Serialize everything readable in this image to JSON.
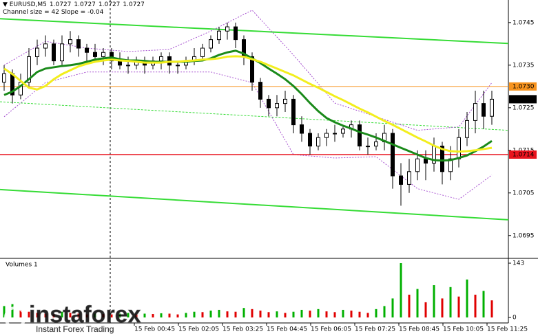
{
  "header": {
    "symbol": "EURUSD,M5",
    "ohlc": [
      1.0727,
      1.0727,
      1.0727,
      1.0727
    ],
    "channel_note": "Channel size = 42 Slope = -0.04"
  },
  "chart_data": {
    "type": "candlestick",
    "open": [
      1.0731,
      1.0733,
      1.0728,
      1.0731,
      1.0737,
      1.0739,
      1.074,
      1.0736,
      1.074,
      1.0741,
      1.0739,
      1.0738,
      1.0737,
      1.0738,
      1.0736,
      1.0735,
      1.0735,
      1.0736,
      1.0735,
      1.0736,
      1.0737,
      1.0735,
      1.0735,
      1.0736,
      1.0737,
      1.0739,
      1.0741,
      1.0743,
      1.0744,
      1.0741,
      1.0737,
      1.0731,
      1.0727,
      1.0725,
      1.0726,
      1.0727,
      1.0721,
      1.0719,
      1.0716,
      1.0718,
      1.0719,
      1.0719,
      1.072,
      1.0721,
      1.0716,
      1.0716,
      1.0717,
      1.0719,
      1.0709,
      1.0707,
      1.071,
      1.0713,
      1.0712,
      1.0716,
      1.071,
      1.0713,
      1.0718,
      1.0722,
      1.0726,
      1.0723
    ],
    "high": [
      1.0735,
      1.0734,
      1.0733,
      1.0739,
      1.0741,
      1.0742,
      1.0741,
      1.0742,
      1.0743,
      1.0742,
      1.074,
      1.074,
      1.0739,
      1.0739,
      1.0738,
      1.0737,
      1.0737,
      1.0737,
      1.0737,
      1.0738,
      1.0738,
      1.0736,
      1.0737,
      1.0739,
      1.074,
      1.0742,
      1.0744,
      1.0745,
      1.0745,
      1.0742,
      1.0738,
      1.0732,
      1.0728,
      1.0728,
      1.0729,
      1.0728,
      1.0723,
      1.072,
      1.0719,
      1.072,
      1.0721,
      1.0721,
      1.0722,
      1.0722,
      1.0718,
      1.0719,
      1.0721,
      1.072,
      1.0712,
      1.0713,
      1.0715,
      1.0715,
      1.0718,
      1.0717,
      1.0716,
      1.072,
      1.0724,
      1.0729,
      1.0729,
      1.0729
    ],
    "low": [
      1.0729,
      1.0726,
      1.0727,
      1.073,
      1.0735,
      1.0737,
      1.0735,
      1.0735,
      1.0738,
      1.0737,
      1.0736,
      1.0736,
      1.0735,
      1.0734,
      1.0734,
      1.0733,
      1.0734,
      1.0733,
      1.0734,
      1.0734,
      1.0733,
      1.0733,
      1.0734,
      1.0735,
      1.0736,
      1.0738,
      1.074,
      1.0741,
      1.0739,
      1.0735,
      1.0729,
      1.0725,
      1.0723,
      1.0723,
      1.0724,
      1.0719,
      1.0717,
      1.0714,
      1.0715,
      1.0716,
      1.0717,
      1.0718,
      1.0718,
      1.0715,
      1.0714,
      1.0715,
      1.0715,
      1.0706,
      1.0702,
      1.0705,
      1.0708,
      1.0708,
      1.071,
      1.0707,
      1.0708,
      1.0711,
      1.0716,
      1.0719,
      1.072,
      1.0721
    ],
    "close": [
      1.0733,
      1.0728,
      1.0731,
      1.0737,
      1.0739,
      1.074,
      1.0736,
      1.074,
      1.0741,
      1.0739,
      1.0738,
      1.0737,
      1.0738,
      1.0736,
      1.0735,
      1.0735,
      1.0736,
      1.0735,
      1.0736,
      1.0737,
      1.0735,
      1.0735,
      1.0736,
      1.0737,
      1.0739,
      1.0741,
      1.0743,
      1.0744,
      1.0741,
      1.0737,
      1.0731,
      1.0727,
      1.0725,
      1.0726,
      1.0727,
      1.0721,
      1.0719,
      1.0716,
      1.0718,
      1.0719,
      1.0719,
      1.072,
      1.0721,
      1.0716,
      1.0716,
      1.0717,
      1.0719,
      1.0709,
      1.0707,
      1.071,
      1.0713,
      1.0712,
      1.0716,
      1.071,
      1.0713,
      1.0718,
      1.0722,
      1.0726,
      1.0723,
      1.0727
    ],
    "series": [
      {
        "color": "#1a8a1a",
        "values": [
          1.0728,
          1.07288,
          1.07301,
          1.07317,
          1.07334,
          1.07342,
          1.07345,
          1.07348,
          1.0735,
          1.07353,
          1.07358,
          1.07363,
          1.07366,
          1.07368,
          1.07364,
          1.07361,
          1.07361,
          1.0736,
          1.07358,
          1.07358,
          1.07358,
          1.07358,
          1.07358,
          1.0736,
          1.07361,
          1.07366,
          1.07374,
          1.0738,
          1.07384,
          1.07377,
          1.07366,
          1.07355,
          1.07342,
          1.0733,
          1.07317,
          1.07301,
          1.07282,
          1.07261,
          1.07242,
          1.07226,
          1.07216,
          1.07208,
          1.07201,
          1.07193,
          1.07187,
          1.0718,
          1.07172,
          1.07164,
          1.07156,
          1.07148,
          1.0714,
          1.07132,
          1.07127,
          1.07126,
          1.07127,
          1.07132,
          1.07138,
          1.07148,
          1.07159,
          1.07172
        ]
      },
      {
        "color": "#f2ee1e",
        "values": [
          1.07342,
          1.07329,
          1.07313,
          1.07297,
          1.07293,
          1.07301,
          1.07317,
          1.07329,
          1.07338,
          1.07347,
          1.07353,
          1.07358,
          1.07361,
          1.07363,
          1.07361,
          1.0736,
          1.07358,
          1.07356,
          1.07356,
          1.07356,
          1.07358,
          1.07358,
          1.0736,
          1.07361,
          1.07363,
          1.07364,
          1.07366,
          1.0737,
          1.07371,
          1.0737,
          1.07364,
          1.07358,
          1.0735,
          1.07342,
          1.07334,
          1.07326,
          1.07316,
          1.07306,
          1.07297,
          1.07287,
          1.07277,
          1.07268,
          1.07258,
          1.07248,
          1.07239,
          1.07229,
          1.07219,
          1.0721,
          1.072,
          1.0719,
          1.0718,
          1.07171,
          1.07161,
          1.07153,
          1.07148,
          1.07147,
          1.07148,
          1.0715,
          1.07153,
          1.07156
        ]
      }
    ],
    "envelope": {
      "color": "#a64fd0",
      "x": [
        0,
        5,
        10,
        15,
        20,
        25,
        30,
        35,
        40,
        45,
        50,
        55,
        59
      ],
      "upper": [
        1.0735,
        1.07406,
        1.0739,
        1.07382,
        1.07387,
        1.0743,
        1.07479,
        1.07374,
        1.07261,
        1.07229,
        1.07197,
        1.07205,
        1.07309
      ],
      "lower": [
        1.07229,
        1.07309,
        1.07334,
        1.07334,
        1.07334,
        1.07334,
        1.07309,
        1.0714,
        1.07132,
        1.07135,
        1.0706,
        1.07035,
        1.07092
      ]
    },
    "channel": {
      "color": "#36dc36",
      "upper": [
        1.07459,
        1.07401
      ],
      "middle": [
        1.07264,
        1.07197
      ],
      "lower": [
        1.07058,
        1.06987
      ]
    },
    "ylim": [
      1.06898,
      1.07503
    ],
    "yticks": [
      1.0745,
      1.0735,
      1.0725,
      1.0715,
      1.0705,
      1.0695
    ],
    "price_levels": [
      {
        "value": 1.073,
        "label": "1.0730",
        "color": "#f7931e",
        "line": true
      },
      {
        "value": 1.0727,
        "color": "#000000",
        "line": false
      },
      {
        "value": 1.0714,
        "color": "#e8141e",
        "line": true
      }
    ],
    "x_labels": [
      "15 Feb 00:45",
      "15 Feb 02:05",
      "15 Feb 03:25",
      "15 Feb 04:45",
      "15 Feb 06:05",
      "15 Feb 07:25",
      "15 Feb 08:45",
      "15 Feb 10:05",
      "15 Feb 11:25"
    ],
    "volumes": {
      "title": "Volumes 1",
      "ylim": [
        0,
        143
      ],
      "yticks": [
        143,
        0
      ],
      "up_color": "#00b000",
      "down_color": "#e00000",
      "values": [
        30,
        35,
        20,
        15,
        12,
        10,
        8,
        15,
        12,
        10,
        8,
        10,
        9,
        8,
        10,
        12,
        8,
        10,
        9,
        11,
        10,
        8,
        12,
        15,
        14,
        18,
        20,
        16,
        15,
        25,
        22,
        18,
        14,
        16,
        12,
        15,
        20,
        18,
        22,
        16,
        14,
        20,
        18,
        15,
        12,
        22,
        30,
        50,
        143,
        60,
        75,
        40,
        85,
        50,
        80,
        55,
        100,
        60,
        70,
        45
      ]
    }
  },
  "watermark": {
    "brand": "instaforex",
    "tagline": "Instant Forex Trading"
  }
}
